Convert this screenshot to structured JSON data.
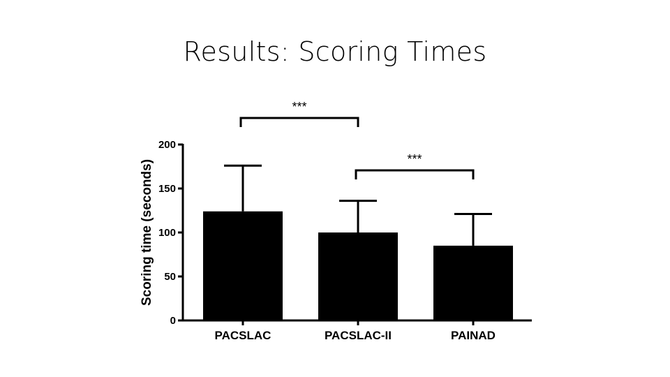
{
  "slide": {
    "title": "Results: Scoring Times"
  },
  "chart_data": {
    "type": "bar",
    "categories": [
      "PACSLAC",
      "PACSLAC-II",
      "PAINAD"
    ],
    "values": [
      124,
      100,
      85
    ],
    "error_upper": [
      176,
      136,
      121
    ],
    "ylabel": "Scoring time  (seconds)",
    "xlabel": "",
    "ylim": [
      0,
      200
    ],
    "yticks": [
      0,
      50,
      100,
      150,
      200
    ],
    "bar_color": "#000000",
    "grid": false,
    "significance": [
      {
        "from": 0,
        "to": 1,
        "label": "***"
      },
      {
        "from": 1,
        "to": 2,
        "label": "***"
      }
    ]
  }
}
